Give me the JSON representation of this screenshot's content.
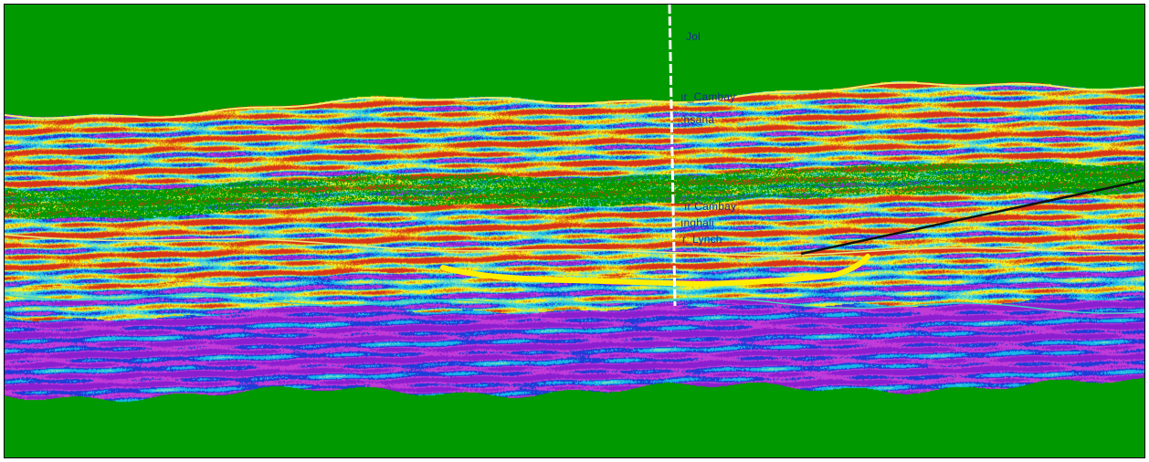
{
  "view": {
    "background_color": "#009a00",
    "colormap": [
      "#8a1fd0",
      "#c23bd8",
      "#1f3bd8",
      "#18b6e8",
      "#6fe0c0",
      "#f0ee20",
      "#e08a12",
      "#d8341a"
    ]
  },
  "well": {
    "track_color": "#ffffff",
    "tops": [
      {
        "label": "Jol"
      },
      {
        "label": "ır_Cambay"
      },
      {
        "label": ":hsana"
      },
      {
        "label": "ır Cambay"
      },
      {
        "label": "ınghali"
      },
      {
        "label": "r_Lynch"
      }
    ]
  },
  "horizons": {
    "top_color": "#f2f06a",
    "mid_color": "#e8e87a",
    "base_color": "#3fd8c0",
    "channel_color": "#ffee00",
    "fault_color": "#111111"
  }
}
